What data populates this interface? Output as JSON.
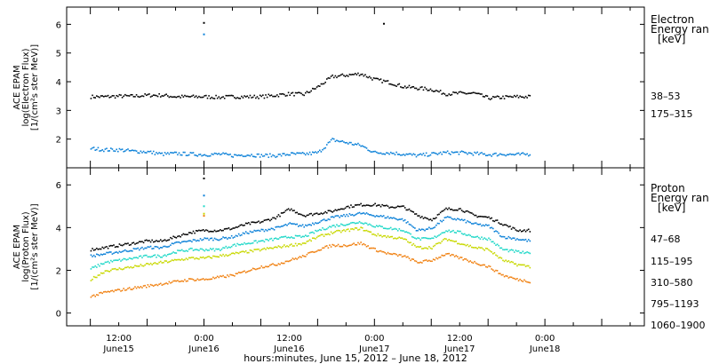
{
  "chart_data": [
    {
      "type": "scatter",
      "panel": "electron",
      "ylabel": [
        "ACE EPAM",
        "log(Electron Flux)",
        "[1/(cm²s ster MeV)]"
      ],
      "ylim": [
        1.0,
        6.6
      ],
      "yticks": [
        2,
        3,
        4,
        5,
        6
      ],
      "legend_title": [
        "Electron",
        "Energy ran",
        "[keV]"
      ],
      "legend_placement": "right",
      "grid": false,
      "series": [
        {
          "name": "38–53",
          "color": "#000000",
          "x": [
            0,
            3,
            6,
            9,
            12,
            15,
            18,
            21,
            24,
            27,
            30,
            33,
            36,
            39,
            42,
            45,
            48,
            51,
            54,
            57,
            60,
            63,
            66,
            69,
            72,
            75,
            78,
            81,
            84,
            87,
            90,
            93
          ],
          "y": [
            3.5,
            3.5,
            3.52,
            3.52,
            3.55,
            3.55,
            3.5,
            3.5,
            3.5,
            3.48,
            3.5,
            3.5,
            3.5,
            3.55,
            3.6,
            3.58,
            3.85,
            4.2,
            4.25,
            4.3,
            4.1,
            4.0,
            3.85,
            3.8,
            3.75,
            3.6,
            3.62,
            3.62,
            3.45,
            3.48,
            3.5,
            3.5
          ]
        },
        {
          "name": "175–315",
          "color": "#0a80d8",
          "x": [
            0,
            3,
            6,
            9,
            12,
            15,
            18,
            21,
            24,
            27,
            30,
            33,
            36,
            39,
            42,
            45,
            48,
            51,
            54,
            57,
            60,
            63,
            66,
            69,
            72,
            75,
            78,
            81,
            84,
            87,
            90,
            93
          ],
          "y": [
            1.7,
            1.65,
            1.65,
            1.6,
            1.58,
            1.5,
            1.52,
            1.5,
            1.48,
            1.5,
            1.45,
            1.48,
            1.45,
            1.45,
            1.5,
            1.5,
            1.55,
            2.0,
            1.9,
            1.8,
            1.55,
            1.55,
            1.5,
            1.45,
            1.5,
            1.55,
            1.55,
            1.52,
            1.48,
            1.5,
            1.48,
            1.5
          ]
        }
      ],
      "outliers": [
        {
          "x": 24,
          "y": 6.05,
          "color": "#000000"
        },
        {
          "x": 24,
          "y": 5.65,
          "color": "#0a80d8"
        },
        {
          "x": 62,
          "y": 6.02,
          "color": "#000000"
        }
      ]
    },
    {
      "type": "scatter",
      "panel": "proton",
      "ylabel": [
        "ACE EPAM",
        "log(Proton Flux)",
        "[1/(cm²s ster MeV)]"
      ],
      "ylim": [
        -0.6,
        6.8
      ],
      "yticks": [
        0,
        2,
        4,
        6
      ],
      "legend_title": [
        "Proton",
        "Energy ran",
        "[keV]"
      ],
      "legend_placement": "right",
      "grid": false,
      "series": [
        {
          "name": "47–68",
          "color": "#000000",
          "x": [
            0,
            3,
            6,
            9,
            12,
            15,
            18,
            21,
            24,
            27,
            30,
            33,
            36,
            39,
            42,
            45,
            48,
            51,
            54,
            57,
            60,
            63,
            66,
            69,
            72,
            75,
            78,
            81,
            84,
            87,
            90,
            93
          ],
          "y": [
            3.0,
            3.1,
            3.2,
            3.3,
            3.4,
            3.4,
            3.6,
            3.8,
            3.9,
            3.9,
            4.0,
            4.2,
            4.3,
            4.5,
            4.9,
            4.6,
            4.7,
            4.8,
            5.0,
            5.1,
            5.1,
            5.0,
            5.0,
            4.6,
            4.4,
            4.9,
            4.9,
            4.6,
            4.5,
            4.2,
            3.9,
            3.9
          ]
        },
        {
          "name": "115–195",
          "color": "#0a80d8",
          "x": [
            0,
            3,
            6,
            9,
            12,
            15,
            18,
            21,
            24,
            27,
            30,
            33,
            36,
            39,
            42,
            45,
            48,
            51,
            54,
            57,
            60,
            63,
            66,
            69,
            72,
            75,
            78,
            81,
            84,
            87,
            90,
            93
          ],
          "y": [
            2.7,
            2.8,
            2.9,
            3.0,
            3.1,
            3.1,
            3.3,
            3.4,
            3.5,
            3.5,
            3.6,
            3.8,
            3.9,
            4.0,
            4.2,
            4.1,
            4.3,
            4.5,
            4.6,
            4.7,
            4.6,
            4.5,
            4.4,
            3.9,
            4.0,
            4.5,
            4.4,
            4.2,
            4.1,
            3.6,
            3.5,
            3.4
          ]
        },
        {
          "name": "310–580",
          "color": "#20d8c8",
          "x": [
            0,
            3,
            6,
            9,
            12,
            15,
            18,
            21,
            24,
            27,
            30,
            33,
            36,
            39,
            42,
            45,
            48,
            51,
            54,
            57,
            60,
            63,
            66,
            69,
            72,
            75,
            78,
            81,
            84,
            87,
            90,
            93
          ],
          "y": [
            2.1,
            2.4,
            2.5,
            2.6,
            2.7,
            2.7,
            2.9,
            3.0,
            3.0,
            3.0,
            3.2,
            3.3,
            3.4,
            3.5,
            3.6,
            3.6,
            3.9,
            4.1,
            4.2,
            4.3,
            4.1,
            4.0,
            3.9,
            3.5,
            3.5,
            3.9,
            3.8,
            3.6,
            3.5,
            3.0,
            2.9,
            2.8
          ]
        },
        {
          "name": "795–1193",
          "color": "#c8d800",
          "x": [
            0,
            3,
            6,
            9,
            12,
            15,
            18,
            21,
            24,
            27,
            30,
            33,
            36,
            39,
            42,
            45,
            48,
            51,
            54,
            57,
            60,
            63,
            66,
            69,
            72,
            75,
            78,
            81,
            84,
            87,
            90,
            93
          ],
          "y": [
            1.6,
            2.0,
            2.1,
            2.2,
            2.3,
            2.4,
            2.5,
            2.6,
            2.6,
            2.7,
            2.8,
            2.9,
            3.0,
            3.1,
            3.2,
            3.3,
            3.6,
            3.8,
            3.9,
            4.0,
            3.7,
            3.6,
            3.5,
            3.1,
            3.1,
            3.5,
            3.3,
            3.1,
            3.0,
            2.5,
            2.3,
            2.2
          ]
        },
        {
          "name": "1060–1900",
          "color": "#f08010",
          "x": [
            0,
            3,
            6,
            9,
            12,
            15,
            18,
            21,
            24,
            27,
            30,
            33,
            36,
            39,
            42,
            45,
            48,
            51,
            54,
            57,
            60,
            63,
            66,
            69,
            72,
            75,
            78,
            81,
            84,
            87,
            90,
            93
          ],
          "y": [
            0.8,
            1.0,
            1.1,
            1.2,
            1.3,
            1.4,
            1.5,
            1.6,
            1.6,
            1.7,
            1.8,
            2.0,
            2.2,
            2.3,
            2.5,
            2.7,
            3.0,
            3.2,
            3.2,
            3.3,
            3.0,
            2.8,
            2.7,
            2.4,
            2.5,
            2.8,
            2.6,
            2.4,
            2.2,
            1.8,
            1.6,
            1.5
          ]
        }
      ],
      "outliers": [
        {
          "x": 24,
          "y": 6.3,
          "color": "#000000"
        },
        {
          "x": 24,
          "y": 5.5,
          "color": "#0a80d8"
        },
        {
          "x": 24,
          "y": 5.0,
          "color": "#20d8c8"
        },
        {
          "x": 24,
          "y": 4.65,
          "color": "#c8d800"
        },
        {
          "x": 24,
          "y": 4.55,
          "color": "#f08010"
        }
      ]
    }
  ],
  "x_axis": {
    "range": [
      -5,
      117
    ],
    "ticks": [
      {
        "x": 6,
        "time": "12:00",
        "date": "June15"
      },
      {
        "x": 24,
        "time": "0:00",
        "date": "June16"
      },
      {
        "x": 42,
        "time": "12:00",
        "date": "June16"
      },
      {
        "x": 60,
        "time": "0:00",
        "date": "June17"
      },
      {
        "x": 78,
        "time": "12:00",
        "date": "June17"
      },
      {
        "x": 96,
        "time": "0:00",
        "date": "June18"
      }
    ],
    "label": "hours:minutes, June 15, 2012 – June 18, 2012"
  }
}
